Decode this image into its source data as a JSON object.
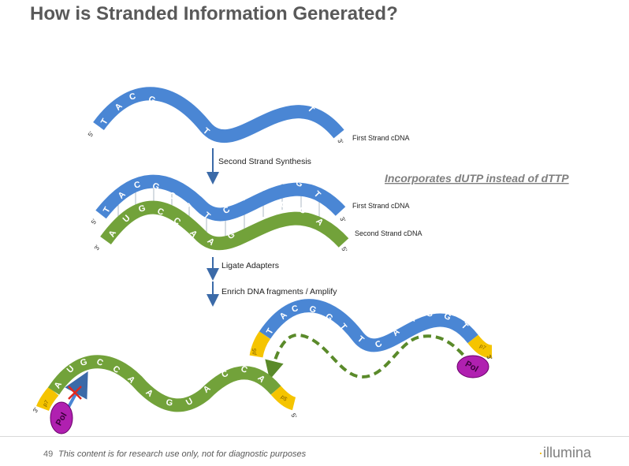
{
  "title": "How is Stranded Information Generated?",
  "strand_labels": {
    "first_strand": "First Strand cDNA",
    "second_strand": "Second Strand cDNA",
    "five_prime": "5'",
    "three_prime": "3'"
  },
  "steps": {
    "second_strand_synthesis": "Second Strand Synthesis",
    "ligate_adapters": "Ligate Adapters",
    "enrich": "Enrich DNA fragments / Amplify"
  },
  "callout": "Incorporates dUTP instead of dTTP",
  "sequences": {
    "first_strand": [
      "T",
      "A",
      "C",
      "G",
      "G",
      "T",
      "T",
      "C",
      "A",
      "T",
      "G",
      "G",
      "T"
    ],
    "second_strand": [
      "A",
      "U",
      "G",
      "C",
      "C",
      "A",
      "A",
      "G",
      "U",
      "A",
      "C",
      "C",
      "A"
    ]
  },
  "adapters": {
    "p5": "p5",
    "p7": "p7"
  },
  "polymerase": "Pol",
  "colors": {
    "first_strand": "#4a86d4",
    "second_strand": "#72a23a",
    "adapter": "#f5c400",
    "polymerase": "#b020b0",
    "arrow": "#3b6aa8",
    "block": "#e0281e"
  },
  "footer": {
    "page_number": "49",
    "disclaimer": "This content is for research use only, not for diagnostic purposes",
    "logo": "illumina"
  }
}
